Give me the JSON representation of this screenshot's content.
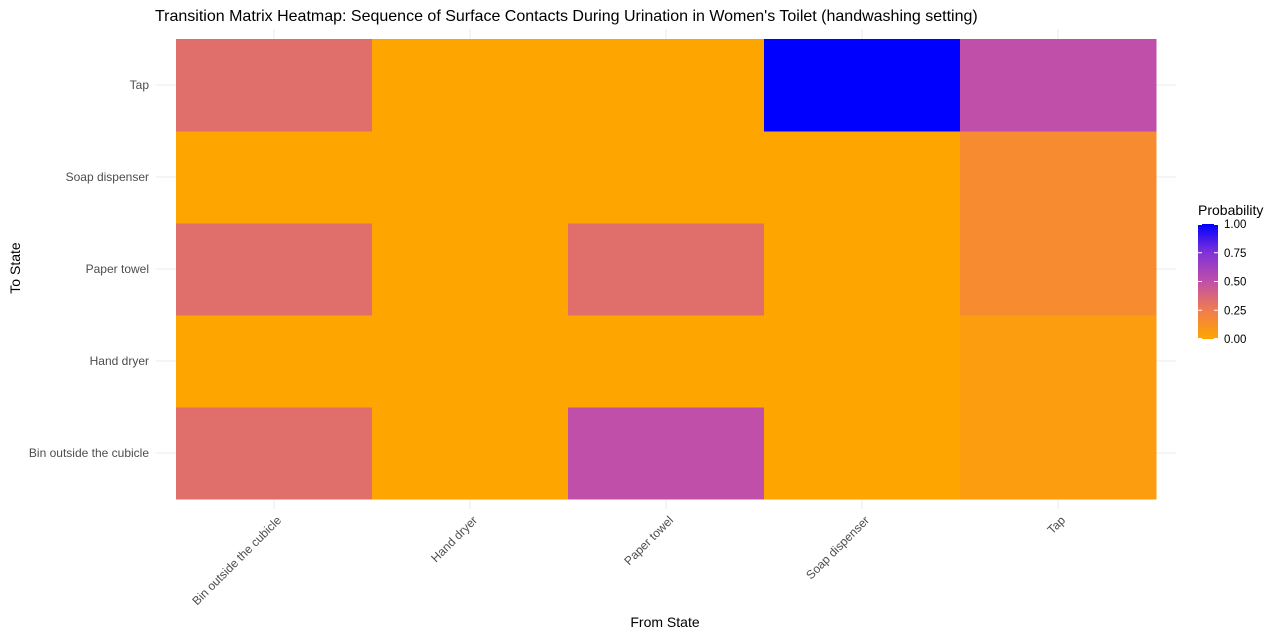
{
  "chart_data": {
    "type": "heatmap",
    "title": "Transition Matrix Heatmap: Sequence of Surface Contacts During Urination in Women's Toilet (handwashing setting)",
    "xlabel": "From State",
    "ylabel": "To State",
    "x_categories": [
      "Bin outside the cubicle",
      "Hand dryer",
      "Paper towel",
      "Soap dispenser",
      "Tap"
    ],
    "y_categories": [
      "Bin outside the cubicle",
      "Hand dryer",
      "Paper towel",
      "Soap dispenser",
      "Tap"
    ],
    "values": [
      [
        0.33,
        0.0,
        0.5,
        0.0,
        0.05
      ],
      [
        0.0,
        0.0,
        0.0,
        0.0,
        0.05
      ],
      [
        0.33,
        0.0,
        0.33,
        0.0,
        0.15
      ],
      [
        0.0,
        0.0,
        0.0,
        0.0,
        0.15
      ],
      [
        0.33,
        0.0,
        0.0,
        1.0,
        0.5
      ]
    ],
    "color_scale": {
      "low": "#FFA500",
      "high": "#0000FF",
      "range": [
        0,
        1
      ]
    },
    "legend": {
      "title": "Probability",
      "ticks": [
        "0.00",
        "0.25",
        "0.50",
        "0.75",
        "1.00"
      ],
      "position": "right"
    },
    "grid": true
  }
}
